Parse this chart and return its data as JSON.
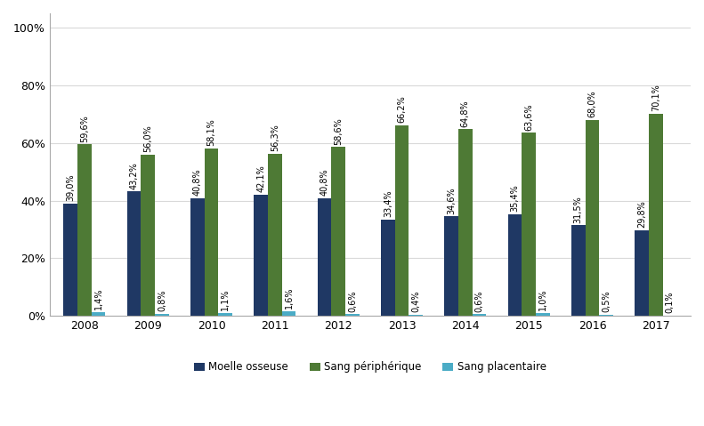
{
  "years": [
    2008,
    2009,
    2010,
    2011,
    2012,
    2013,
    2014,
    2015,
    2016,
    2017
  ],
  "moelle_osseuse": [
    39.0,
    43.2,
    40.8,
    42.1,
    40.8,
    33.4,
    34.6,
    35.4,
    31.5,
    29.8
  ],
  "sang_peripherique": [
    59.6,
    56.0,
    58.1,
    56.3,
    58.6,
    66.2,
    64.8,
    63.6,
    68.0,
    70.1
  ],
  "sang_placentaire": [
    1.4,
    0.8,
    1.1,
    1.6,
    0.6,
    0.4,
    0.6,
    1.0,
    0.5,
    0.1
  ],
  "moelle_color": "#1F3864",
  "sang_peri_color": "#4E7A35",
  "sang_plac_color": "#4BACC6",
  "legend_labels": [
    "Moelle osseuse",
    "Sang périphérique",
    "Sang placentaire"
  ],
  "ylabel_ticks": [
    "0%",
    "20%",
    "40%",
    "60%",
    "80%",
    "100%"
  ],
  "ytick_values": [
    0,
    20,
    40,
    60,
    80,
    100
  ],
  "bar_width": 0.22,
  "background_color": "#FFFFFF",
  "grid_color": "#D9D9D9",
  "label_fontsize": 7.0,
  "legend_fontsize": 8.5,
  "tick_fontsize": 9
}
